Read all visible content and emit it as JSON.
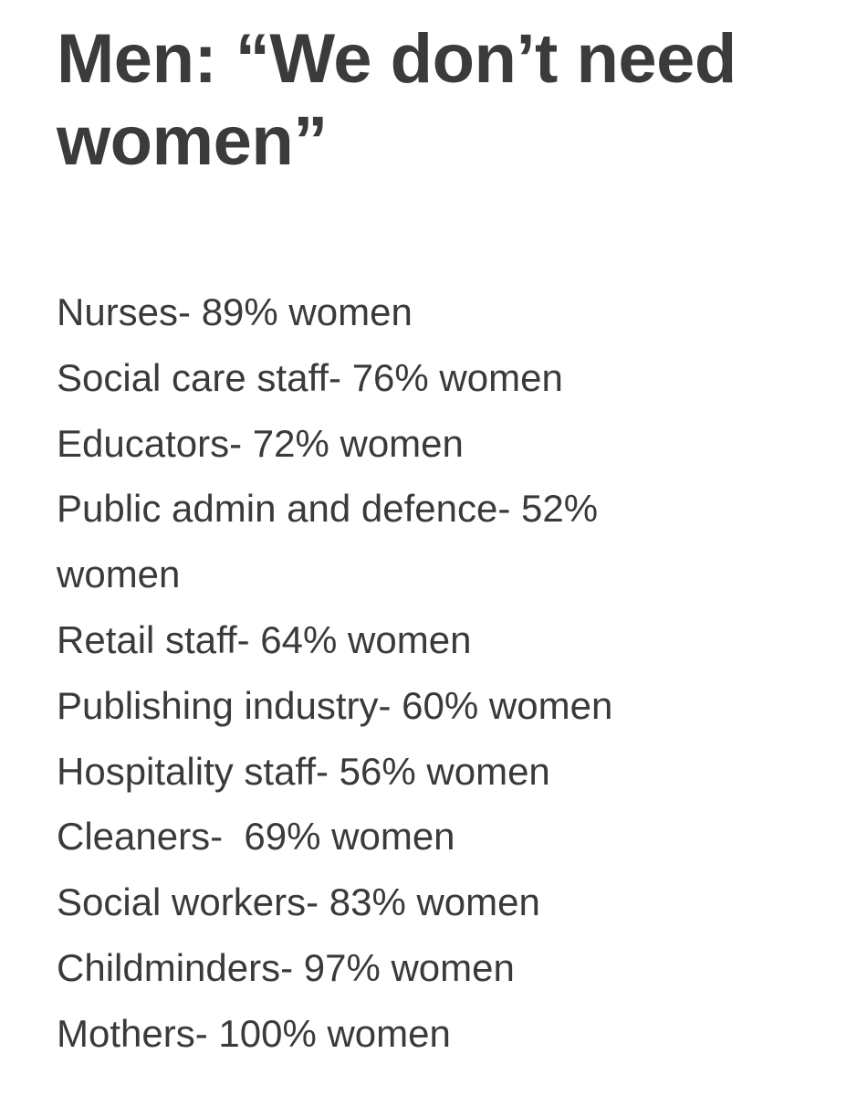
{
  "note": {
    "title_lines": [
      "Men: “We don’t need",
      "women”"
    ],
    "lines": [
      "Nurses- 89% women",
      "Social care staff- 76% women",
      "Educators- 72% women",
      "Public admin and defence- 52%",
      "women",
      "Retail staff- 64% women",
      "Publishing industry- 60% women",
      "Hospitality staff- 56% women",
      "Cleaners-  69% women",
      "Social workers- 83% women",
      "Childminders- 97% women",
      "Mothers- 100% women"
    ]
  }
}
